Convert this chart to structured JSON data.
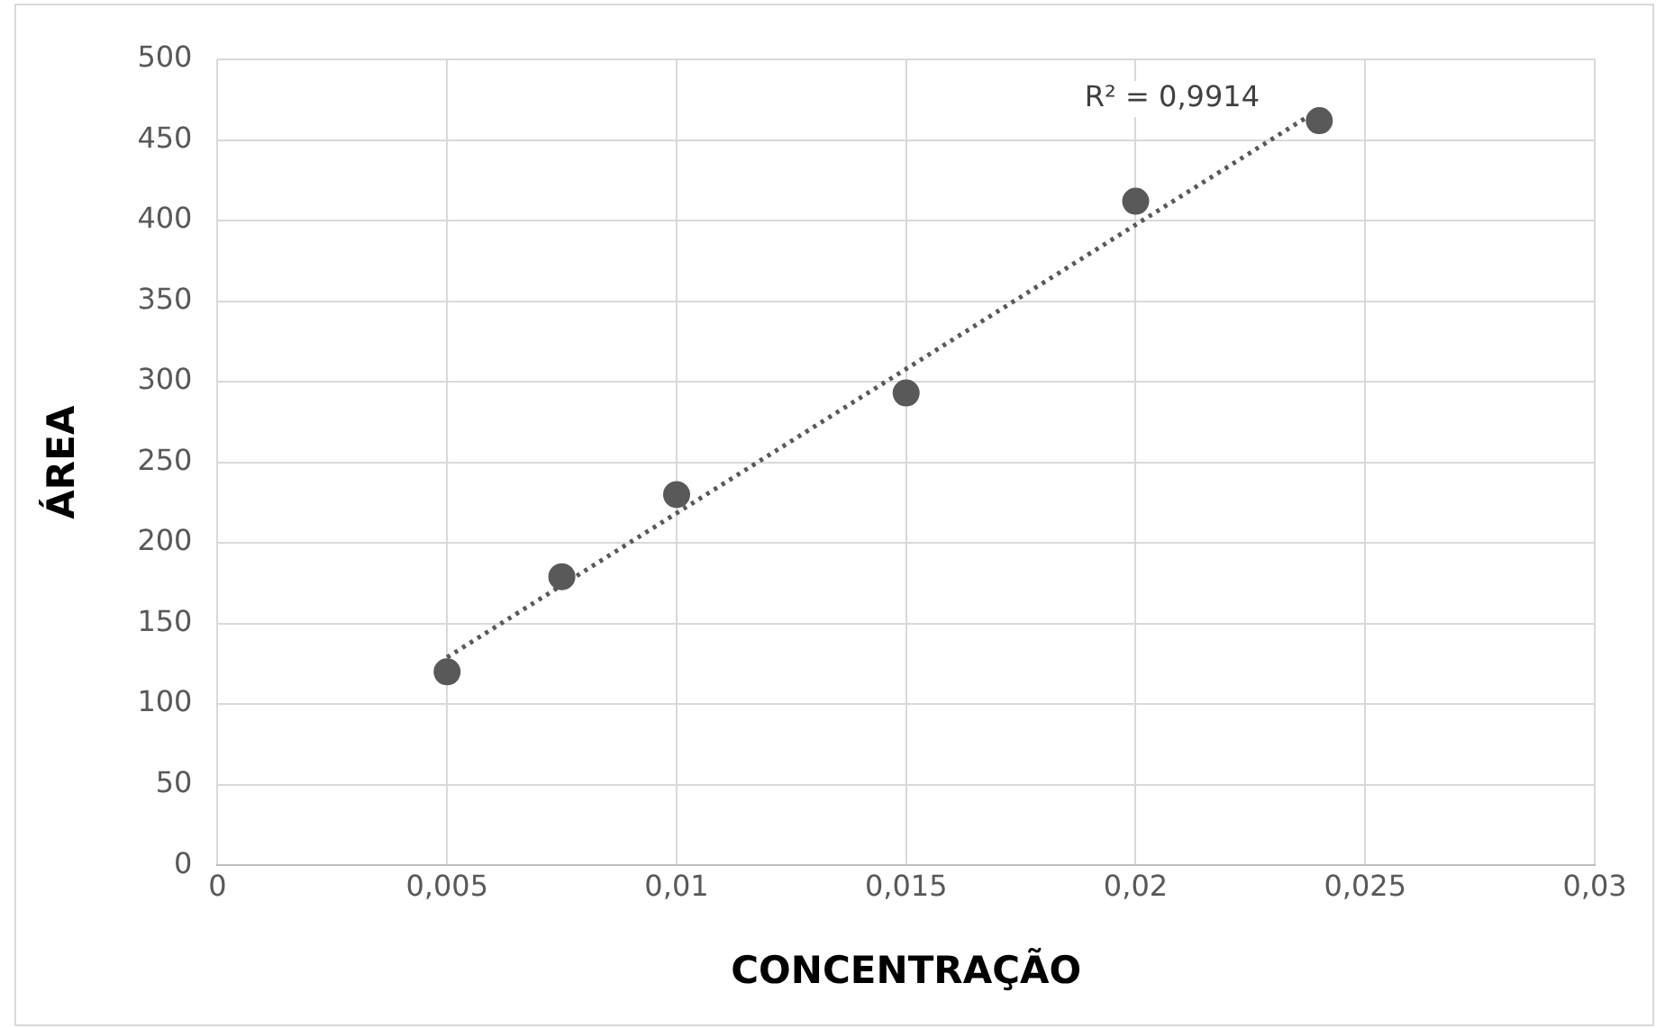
{
  "chart_data": {
    "type": "scatter",
    "xlabel": "CONCENTRAÇÃO",
    "ylabel": "ÁREA",
    "x": [
      0.005,
      0.0075,
      0.01,
      0.015,
      0.02,
      0.024
    ],
    "series": [
      {
        "color": "#595959",
        "values": [
          120,
          179,
          230,
          293,
          412,
          462
        ],
        "marker": "circle"
      },
      {
        "type": "line",
        "color": "#595959",
        "x": [
          0.005,
          0.024
        ],
        "values": [
          129,
          469
        ],
        "line_style": "dotted",
        "marker": "none"
      }
    ],
    "xlim": [
      0,
      0.03
    ],
    "xticks": [
      0,
      {
        "value": 0.005,
        "label": "0,005"
      },
      {
        "value": 0.01,
        "label": "0,01"
      },
      {
        "value": 0.015,
        "label": "0,015"
      },
      {
        "value": 0.02,
        "label": "0,02"
      },
      {
        "value": 0.025,
        "label": "0,025"
      },
      {
        "value": 0.03,
        "label": "0,03"
      }
    ],
    "ylim": [
      0,
      500
    ],
    "yticks": [
      0,
      50,
      100,
      150,
      200,
      250,
      300,
      350,
      400,
      450,
      500
    ],
    "grid": true,
    "legend": false,
    "annotations": [
      "R² = 0,9914"
    ]
  }
}
